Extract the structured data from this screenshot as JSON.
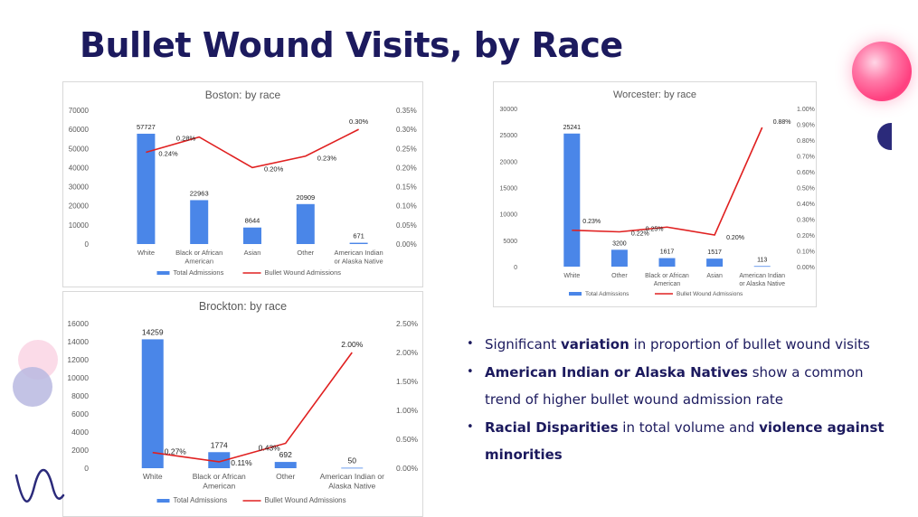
{
  "page": {
    "title": "Bullet Wound Visits, by Race",
    "bullets": [
      [
        {
          "t": "Significant ",
          "b": false
        },
        {
          "t": "variation",
          "b": true
        },
        {
          "t": " in proportion of bullet wound visits",
          "b": false
        }
      ],
      [
        {
          "t": "American Indian or Alaska Natives",
          "b": true
        },
        {
          "t": " show a common trend of higher bullet wound admission rate",
          "b": false
        }
      ],
      [
        {
          "t": "Racial Disparities",
          "b": true
        },
        {
          "t": " in total volume and ",
          "b": false
        },
        {
          "t": "violence against minorities",
          "b": true
        }
      ]
    ]
  },
  "colors": {
    "title": "#1c1a5e",
    "bar": "#4a86e8",
    "line": "#e02020",
    "axis_text": "#595959",
    "deco_pink": "#ff5c93",
    "deco_lavender": "#b9b8e0",
    "deco_navy": "#2b2a7a"
  },
  "legend": {
    "bar_label": "Total Admissions",
    "line_label": "Bullet Wound Admissions"
  },
  "chart_data": [
    {
      "id": "boston",
      "type": "bar+line",
      "title": "Boston: by race",
      "categories": [
        "White",
        "Black or African American",
        "Asian",
        "Other",
        "American Indian or Alaska Native"
      ],
      "category_lines": [
        [
          "White"
        ],
        [
          "Black or African",
          "American"
        ],
        [
          "Asian"
        ],
        [
          "Other"
        ],
        [
          "American Indian",
          "or Alaska Native"
        ]
      ],
      "series": [
        {
          "name": "Total Admissions",
          "type": "bar",
          "axis": "left",
          "values": [
            57727,
            22963,
            8644,
            20909,
            671
          ],
          "labels": [
            "57727",
            "22963",
            "8644",
            "20909",
            "671"
          ]
        },
        {
          "name": "Bullet Wound Admissions",
          "type": "line",
          "axis": "right",
          "values": [
            0.24,
            0.28,
            0.2,
            0.23,
            0.3
          ],
          "labels": [
            "0.24%",
            "0.28%",
            "0.20%",
            "0.23%",
            "0.30%"
          ]
        }
      ],
      "y_left": {
        "min": 0,
        "max": 70000,
        "ticks": [
          "0",
          "10000",
          "20000",
          "30000",
          "40000",
          "50000",
          "60000",
          "70000"
        ]
      },
      "y_right": {
        "min": 0,
        "max": 0.35,
        "ticks": [
          "0.00%",
          "0.05%",
          "0.10%",
          "0.15%",
          "0.20%",
          "0.25%",
          "0.30%",
          "0.35%"
        ]
      },
      "legend_position": "bottom",
      "grid": false
    },
    {
      "id": "worcester",
      "type": "bar+line",
      "title": "Worcester: by race",
      "categories": [
        "White",
        "Other",
        "Black or African American",
        "Asian",
        "American Indian or Alaska Native"
      ],
      "category_lines": [
        [
          "White"
        ],
        [
          "Other"
        ],
        [
          "Black or African",
          "American"
        ],
        [
          "Asian"
        ],
        [
          "American Indian",
          "or Alaska Native"
        ]
      ],
      "series": [
        {
          "name": "Total Admissions",
          "type": "bar",
          "axis": "left",
          "values": [
            25241,
            3200,
            1617,
            1517,
            113
          ],
          "labels": [
            "25241",
            "3200",
            "1617",
            "1517",
            "113"
          ]
        },
        {
          "name": "Bullet Wound Admissions",
          "type": "line",
          "axis": "right",
          "values": [
            0.23,
            0.22,
            0.25,
            0.2,
            0.88
          ],
          "labels": [
            "0.23%",
            "0.22%",
            "0.25%",
            "0.20%",
            "0.88%"
          ]
        }
      ],
      "y_left": {
        "min": 0,
        "max": 30000,
        "ticks": [
          "0",
          "5000",
          "10000",
          "15000",
          "20000",
          "25000",
          "30000"
        ]
      },
      "y_right": {
        "min": 0,
        "max": 1.0,
        "ticks": [
          "0.00%",
          "0.10%",
          "0.20%",
          "0.30%",
          "0.40%",
          "0.50%",
          "0.60%",
          "0.70%",
          "0.80%",
          "0.90%",
          "1.00%"
        ]
      },
      "legend_position": "bottom",
      "grid": false
    },
    {
      "id": "brockton",
      "type": "bar+line",
      "title": "Brockton: by race",
      "categories": [
        "White",
        "Black or African American",
        "Other",
        "American Indian or Alaska Native"
      ],
      "category_lines": [
        [
          "White"
        ],
        [
          "Black or African",
          "American"
        ],
        [
          "Other"
        ],
        [
          "American Indian or",
          "Alaska Native"
        ]
      ],
      "series": [
        {
          "name": "Total Admissions",
          "type": "bar",
          "axis": "left",
          "values": [
            14259,
            1774,
            692,
            50
          ],
          "labels": [
            "14259",
            "1774",
            "692",
            "50"
          ]
        },
        {
          "name": "Bullet Wound Admissions",
          "type": "line",
          "axis": "right",
          "values": [
            0.27,
            0.11,
            0.43,
            2.0
          ],
          "labels": [
            "0.27%",
            "0.11%",
            "0.43%",
            "2.00%"
          ]
        }
      ],
      "y_left": {
        "min": 0,
        "max": 16000,
        "ticks": [
          "0",
          "2000",
          "4000",
          "6000",
          "8000",
          "10000",
          "12000",
          "14000",
          "16000"
        ]
      },
      "y_right": {
        "min": 0,
        "max": 2.5,
        "ticks": [
          "0.00%",
          "0.50%",
          "1.00%",
          "1.50%",
          "2.00%",
          "2.50%"
        ]
      },
      "legend_position": "bottom",
      "grid": false
    }
  ]
}
